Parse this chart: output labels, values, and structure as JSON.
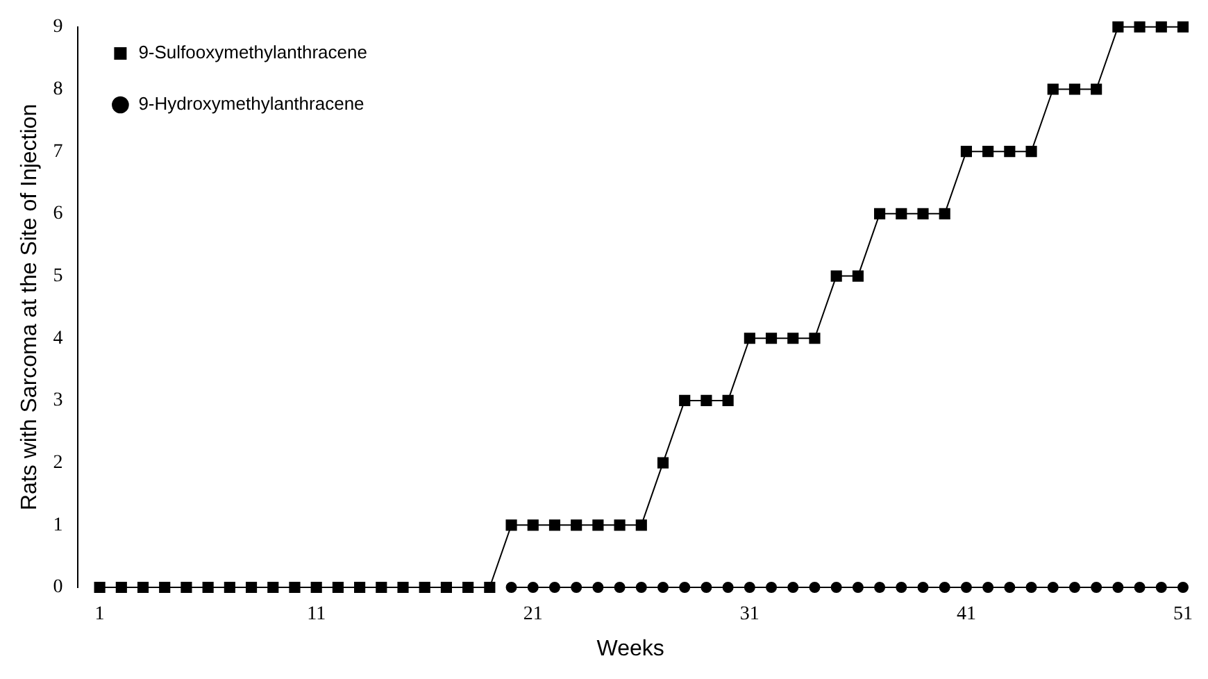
{
  "chart_data": {
    "type": "line",
    "xlabel": "Weeks",
    "ylabel": "Rats with Sarcoma at the Site of Injection",
    "x": [
      1,
      2,
      3,
      4,
      5,
      6,
      7,
      8,
      9,
      10,
      11,
      12,
      13,
      14,
      15,
      16,
      17,
      18,
      19,
      20,
      21,
      22,
      23,
      24,
      25,
      26,
      27,
      28,
      29,
      30,
      31,
      32,
      33,
      34,
      35,
      36,
      37,
      38,
      39,
      40,
      41,
      42,
      43,
      44,
      45,
      46,
      47,
      48,
      49,
      50,
      51
    ],
    "series": [
      {
        "name": "9-Sulfooxymethylanthracene",
        "color": "#000000",
        "marker": "square",
        "values": [
          0,
          0,
          0,
          0,
          0,
          0,
          0,
          0,
          0,
          0,
          0,
          0,
          0,
          0,
          0,
          0,
          0,
          0,
          0,
          1,
          1,
          1,
          1,
          1,
          1,
          1,
          2,
          3,
          3,
          3,
          4,
          4,
          4,
          4,
          5,
          5,
          6,
          6,
          6,
          6,
          7,
          7,
          7,
          7,
          8,
          8,
          8,
          9,
          9,
          9,
          9
        ]
      },
      {
        "name": "9-Hydroxymethylanthracene",
        "color": "#000000",
        "marker": "circle",
        "values": [
          null,
          null,
          null,
          null,
          null,
          null,
          null,
          null,
          null,
          null,
          null,
          null,
          null,
          null,
          null,
          null,
          null,
          null,
          null,
          0,
          0,
          0,
          0,
          0,
          0,
          0,
          0,
          0,
          0,
          0,
          0,
          0,
          0,
          0,
          0,
          0,
          0,
          0,
          0,
          0,
          0,
          0,
          0,
          0,
          0,
          0,
          0,
          0,
          0,
          0,
          0
        ]
      }
    ],
    "xlim": [
      0,
      51
    ],
    "xticks": [
      1,
      11,
      21,
      31,
      41,
      51
    ],
    "ylim": [
      0,
      9
    ],
    "yticks": [
      0,
      1,
      2,
      3,
      4,
      5,
      6,
      7,
      8,
      9
    ],
    "grid": false,
    "legend": "top left",
    "line_style": "solid"
  }
}
